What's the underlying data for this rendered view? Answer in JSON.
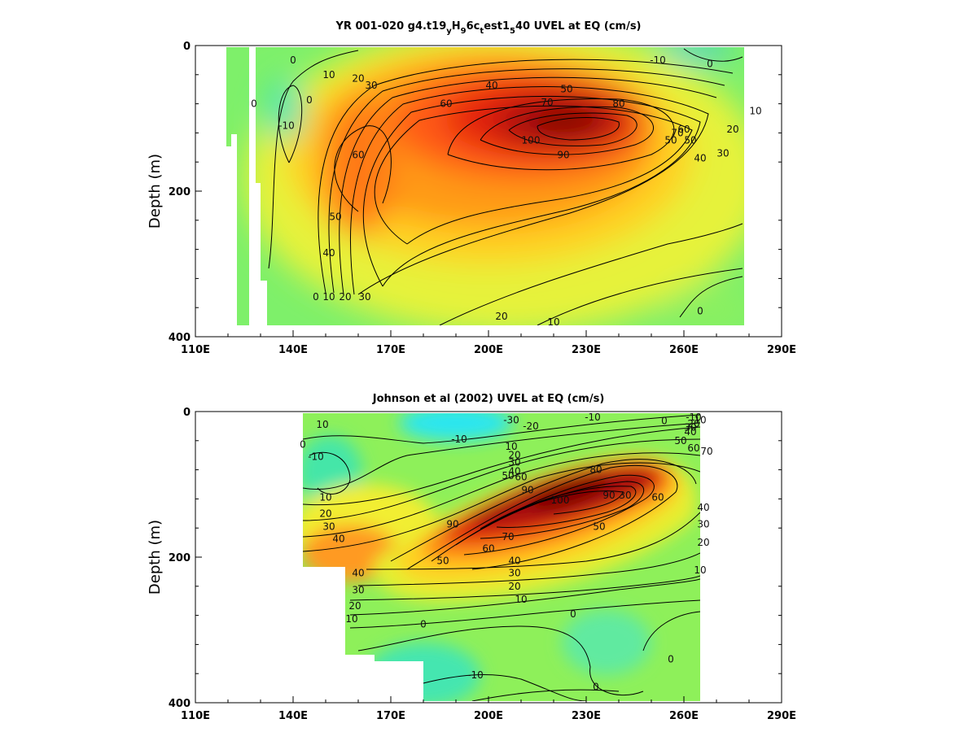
{
  "chart_data": [
    {
      "type": "heatmap",
      "title": "YR 001-020 g4.t19_yH_96c_test1_540 UVEL at EQ (cm/s)",
      "title_parts": {
        "a": "YR 001-020 g4.t19",
        "b": "y",
        "c": "H",
        "d": "9",
        "e": "6c",
        "f": "t",
        "g": "est1",
        "h": "5",
        "i": "40 UVEL at EQ (cm/s)"
      },
      "ylabel": "Depth (m)",
      "xlim": [
        110,
        290
      ],
      "ylim": [
        0,
        400
      ],
      "y_inverted": true,
      "x_ticks": [
        {
          "v": 110,
          "label": "110E"
        },
        {
          "v": 140,
          "label": "140E"
        },
        {
          "v": 170,
          "label": "170E"
        },
        {
          "v": 200,
          "label": "200E"
        },
        {
          "v": 230,
          "label": "230E"
        },
        {
          "v": 260,
          "label": "260E"
        },
        {
          "v": 290,
          "label": "290E"
        }
      ],
      "y_ticks": [
        {
          "v": 0,
          "label": "0"
        },
        {
          "v": 200,
          "label": "200"
        },
        {
          "v": 400,
          "label": "400"
        }
      ],
      "colormap_range": [
        -30,
        110
      ],
      "core": {
        "lon": 222,
        "depth": 110,
        "max_speed": 100
      },
      "contour_labels": [
        {
          "text": "-10",
          "lon": 252,
          "depth": 20
        },
        {
          "text": "0",
          "lon": 268,
          "depth": 25
        },
        {
          "text": "0",
          "lon": 140,
          "depth": 20
        },
        {
          "text": "-10",
          "lon": 138,
          "depth": 110
        },
        {
          "text": "0",
          "lon": 128,
          "depth": 80
        },
        {
          "text": "0",
          "lon": 145,
          "depth": 75
        },
        {
          "text": "10",
          "lon": 151,
          "depth": 40
        },
        {
          "text": "20",
          "lon": 160,
          "depth": 45
        },
        {
          "text": "30",
          "lon": 164,
          "depth": 55
        },
        {
          "text": "40",
          "lon": 201,
          "depth": 55
        },
        {
          "text": "50",
          "lon": 224,
          "depth": 60
        },
        {
          "text": "60",
          "lon": 187,
          "depth": 80
        },
        {
          "text": "70",
          "lon": 218,
          "depth": 78
        },
        {
          "text": "80",
          "lon": 240,
          "depth": 80
        },
        {
          "text": "100",
          "lon": 213,
          "depth": 130
        },
        {
          "text": "90",
          "lon": 223,
          "depth": 150
        },
        {
          "text": "60",
          "lon": 160,
          "depth": 150
        },
        {
          "text": "50",
          "lon": 153,
          "depth": 235
        },
        {
          "text": "40",
          "lon": 151,
          "depth": 285
        },
        {
          "text": "30",
          "lon": 162,
          "depth": 345
        },
        {
          "text": "20",
          "lon": 156,
          "depth": 345
        },
        {
          "text": "10",
          "lon": 151,
          "depth": 345
        },
        {
          "text": "0",
          "lon": 147,
          "depth": 345
        },
        {
          "text": "20",
          "lon": 204,
          "depth": 372
        },
        {
          "text": "10",
          "lon": 220,
          "depth": 380
        },
        {
          "text": "0",
          "lon": 265,
          "depth": 365
        },
        {
          "text": "20",
          "lon": 275,
          "depth": 115
        },
        {
          "text": "10",
          "lon": 282,
          "depth": 90
        },
        {
          "text": "50",
          "lon": 262,
          "depth": 130
        },
        {
          "text": "40",
          "lon": 265,
          "depth": 155
        },
        {
          "text": "30",
          "lon": 272,
          "depth": 148
        },
        {
          "text": "60",
          "lon": 260,
          "depth": 115
        },
        {
          "text": "50",
          "lon": 256,
          "depth": 130
        },
        {
          "text": "70",
          "lon": 258,
          "depth": 120
        }
      ]
    },
    {
      "type": "heatmap",
      "title": "Johnson et al (2002) UVEL at EQ (cm/s)",
      "ylabel": "Depth (m)",
      "xlim": [
        110,
        290
      ],
      "ylim": [
        0,
        400
      ],
      "y_inverted": true,
      "x_ticks": [
        {
          "v": 110,
          "label": "110E"
        },
        {
          "v": 140,
          "label": "140E"
        },
        {
          "v": 170,
          "label": "170E"
        },
        {
          "v": 200,
          "label": "200E"
        },
        {
          "v": 230,
          "label": "230E"
        },
        {
          "v": 260,
          "label": "260E"
        },
        {
          "v": 290,
          "label": "290E"
        }
      ],
      "y_ticks": [
        {
          "v": 0,
          "label": "0"
        },
        {
          "v": 200,
          "label": "200"
        },
        {
          "v": 400,
          "label": "400"
        }
      ],
      "colormap_range": [
        -30,
        110
      ],
      "core": {
        "lon": 225,
        "depth": 110,
        "max_speed": 100
      },
      "contour_labels": [
        {
          "text": "-30",
          "lon": 207,
          "depth": 12
        },
        {
          "text": "-20",
          "lon": 213,
          "depth": 20
        },
        {
          "text": "-10",
          "lon": 191,
          "depth": 38
        },
        {
          "text": "-10",
          "lon": 232,
          "depth": 8
        },
        {
          "text": "0",
          "lon": 254,
          "depth": 13
        },
        {
          "text": "-10",
          "lon": 263,
          "depth": 8
        },
        {
          "text": "10",
          "lon": 149,
          "depth": 18
        },
        {
          "text": "0",
          "lon": 143,
          "depth": 45
        },
        {
          "text": "-10",
          "lon": 147,
          "depth": 62
        },
        {
          "text": "10",
          "lon": 150,
          "depth": 118
        },
        {
          "text": "20",
          "lon": 150,
          "depth": 140
        },
        {
          "text": "30",
          "lon": 151,
          "depth": 158
        },
        {
          "text": "40",
          "lon": 154,
          "depth": 175
        },
        {
          "text": "10",
          "lon": 207,
          "depth": 48
        },
        {
          "text": "20",
          "lon": 208,
          "depth": 60
        },
        {
          "text": "30",
          "lon": 208,
          "depth": 70
        },
        {
          "text": "40",
          "lon": 208,
          "depth": 82
        },
        {
          "text": "50",
          "lon": 206,
          "depth": 88
        },
        {
          "text": "60",
          "lon": 210,
          "depth": 90
        },
        {
          "text": "90",
          "lon": 212,
          "depth": 108
        },
        {
          "text": "100",
          "lon": 222,
          "depth": 122
        },
        {
          "text": "80",
          "lon": 233,
          "depth": 80
        },
        {
          "text": "90",
          "lon": 237,
          "depth": 115
        },
        {
          "text": "30",
          "lon": 242,
          "depth": 115
        },
        {
          "text": "60",
          "lon": 252,
          "depth": 118
        },
        {
          "text": "50",
          "lon": 234,
          "depth": 158
        },
        {
          "text": "90",
          "lon": 189,
          "depth": 155
        },
        {
          "text": "70",
          "lon": 206,
          "depth": 172
        },
        {
          "text": "60",
          "lon": 200,
          "depth": 188
        },
        {
          "text": "50",
          "lon": 186,
          "depth": 205
        },
        {
          "text": "40",
          "lon": 208,
          "depth": 205
        },
        {
          "text": "30",
          "lon": 208,
          "depth": 222
        },
        {
          "text": "20",
          "lon": 208,
          "depth": 240
        },
        {
          "text": "10",
          "lon": 210,
          "depth": 258
        },
        {
          "text": "40",
          "lon": 160,
          "depth": 222
        },
        {
          "text": "30",
          "lon": 160,
          "depth": 245
        },
        {
          "text": "20",
          "lon": 159,
          "depth": 267
        },
        {
          "text": "10",
          "lon": 158,
          "depth": 285
        },
        {
          "text": "0",
          "lon": 180,
          "depth": 292
        },
        {
          "text": "0",
          "lon": 226,
          "depth": 278
        },
        {
          "text": "-10",
          "lon": 196,
          "depth": 362
        },
        {
          "text": "0",
          "lon": 233,
          "depth": 378
        },
        {
          "text": "0",
          "lon": 256,
          "depth": 340
        },
        {
          "text": "40",
          "lon": 266,
          "depth": 132
        },
        {
          "text": "30",
          "lon": 266,
          "depth": 155
        },
        {
          "text": "20",
          "lon": 266,
          "depth": 180
        },
        {
          "text": "10",
          "lon": 265,
          "depth": 218
        },
        {
          "text": "70",
          "lon": 267,
          "depth": 55
        },
        {
          "text": "60",
          "lon": 263,
          "depth": 50
        },
        {
          "text": "50",
          "lon": 259,
          "depth": 40
        },
        {
          "text": "40",
          "lon": 262,
          "depth": 28
        },
        {
          "text": "30",
          "lon": 262,
          "depth": 22
        },
        {
          "text": "20",
          "lon": 263,
          "depth": 17
        },
        {
          "text": "10",
          "lon": 265,
          "depth": 12
        }
      ]
    }
  ]
}
